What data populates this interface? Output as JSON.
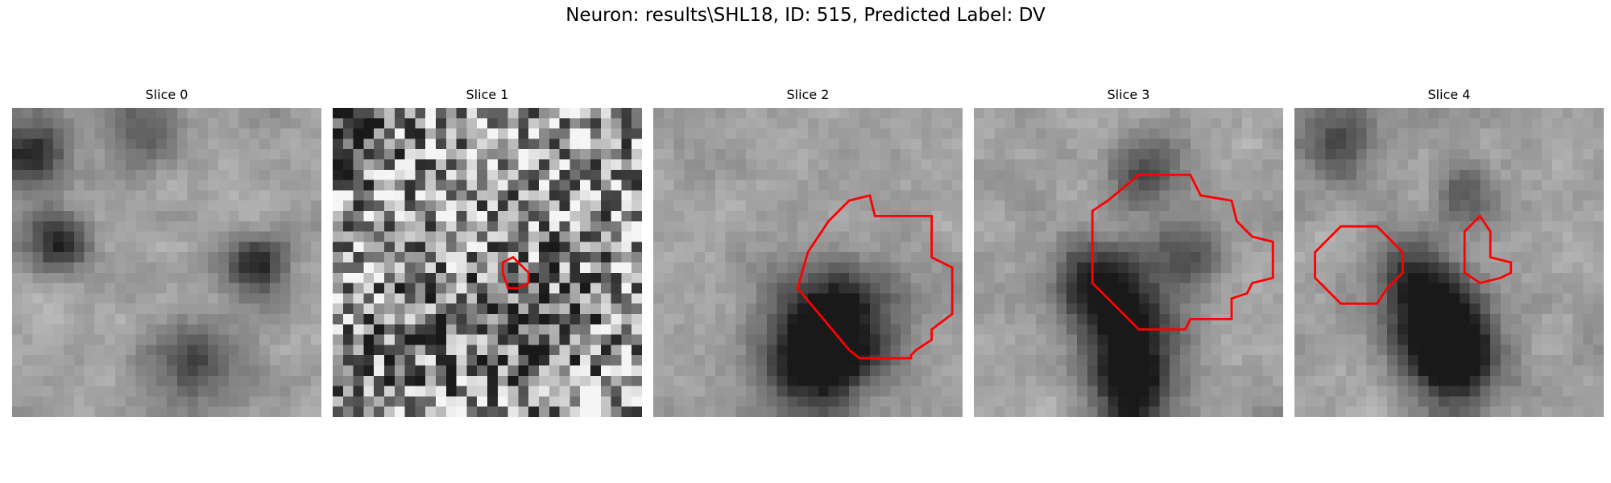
{
  "figure": {
    "title": "Neuron: results\\SHL18, ID: 515, Predicted Label: DV"
  },
  "panels": [
    {
      "title": "Slice 0",
      "seed": 11,
      "noise": 0.25,
      "blur": 2,
      "contour": "none"
    },
    {
      "title": "Slice 1",
      "seed": 23,
      "noise": 0.55,
      "blur": 0,
      "contour": "small"
    },
    {
      "title": "Slice 2",
      "seed": 37,
      "noise": 0.18,
      "blur": 2,
      "contour": "large"
    },
    {
      "title": "Slice 3",
      "seed": 41,
      "noise": 0.2,
      "blur": 2,
      "contour": "cross"
    },
    {
      "title": "Slice 4",
      "seed": 53,
      "noise": 0.2,
      "blur": 2,
      "contour": "pair"
    }
  ],
  "colors": {
    "contour": "#ff0000",
    "background": "#ffffff"
  }
}
